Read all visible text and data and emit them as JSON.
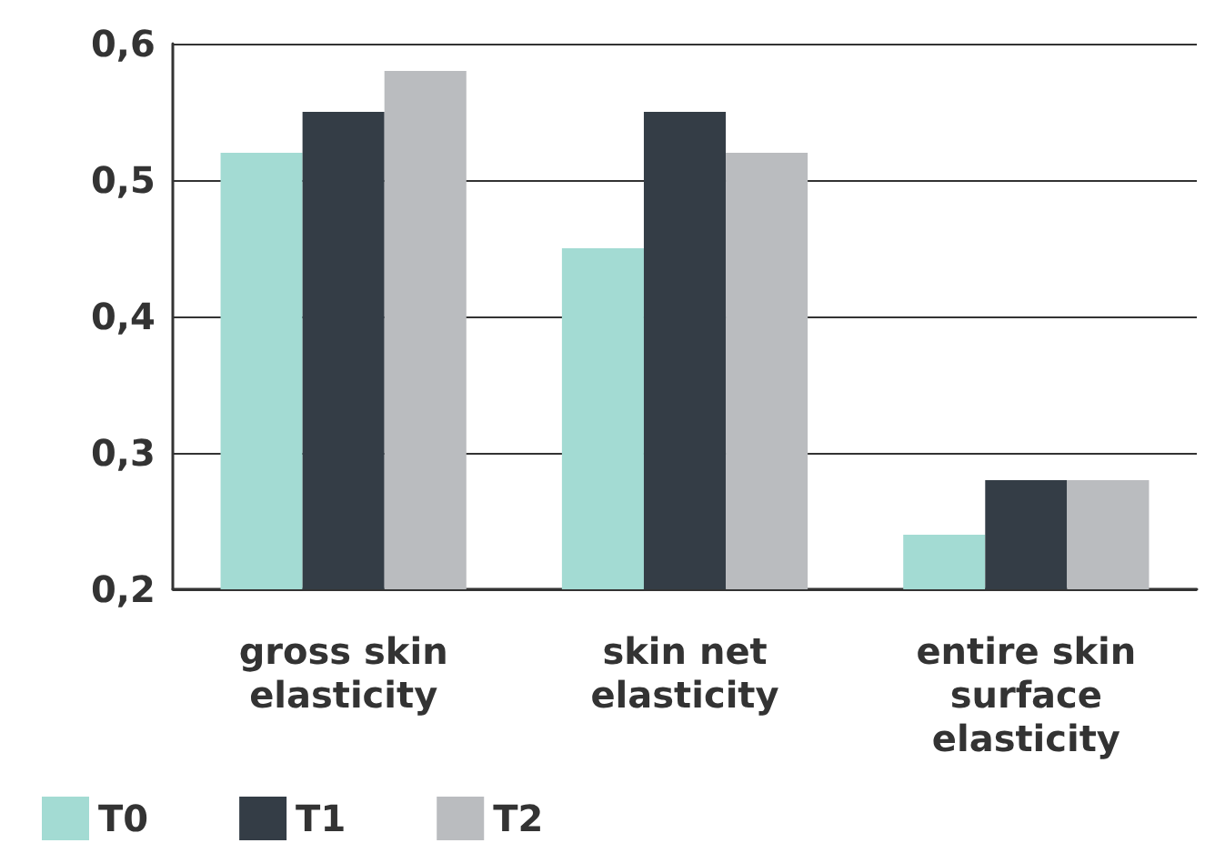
{
  "chart_data": {
    "type": "bar",
    "categories": [
      "gross skin\nelasticity",
      "skin net\nelasticity",
      "entire skin\nsurface\nelasticity"
    ],
    "series": [
      {
        "name": "T0",
        "color": "#a3dbd3",
        "values": [
          0.52,
          0.45,
          0.24
        ]
      },
      {
        "name": "T1",
        "color": "#343d46",
        "values": [
          0.55,
          0.55,
          0.28
        ]
      },
      {
        "name": "T2",
        "color": "#babcbf",
        "values": [
          0.58,
          0.52,
          0.28
        ]
      }
    ],
    "ylim": [
      0.2,
      0.6
    ],
    "yticks": [
      {
        "value": 0.2,
        "label": "0,2"
      },
      {
        "value": 0.3,
        "label": "0,3"
      },
      {
        "value": 0.4,
        "label": "0,4"
      },
      {
        "value": 0.5,
        "label": "0,5"
      },
      {
        "value": 0.6,
        "label": "0,6"
      }
    ],
    "grid": "y",
    "legend": "bottom left"
  }
}
